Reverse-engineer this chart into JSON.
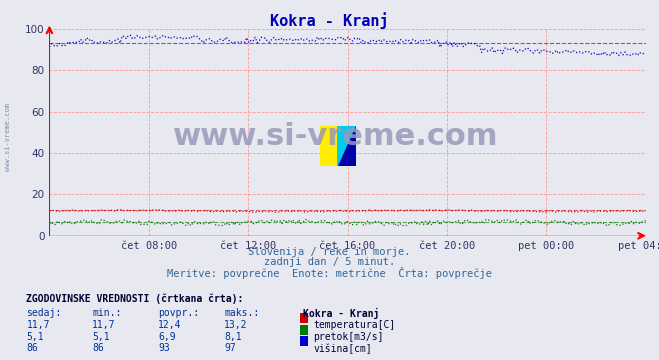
{
  "title": "Kokra - Kranj",
  "title_color": "#0000bb",
  "subtitle_lines": [
    "Slovenija / reke in morje.",
    "zadnji dan / 5 minut.",
    "Meritve: povprečne  Enote: metrične  Črta: povprečje"
  ],
  "xlabel_ticks": [
    "čet 08:00",
    "čet 12:00",
    "čet 16:00",
    "čet 20:00",
    "pet 00:00",
    "pet 04:00"
  ],
  "ylim": [
    0,
    100
  ],
  "background_color": "#e8e8f0",
  "plot_bg_color": "#e8e8f0",
  "grid_color": "#ff9999",
  "n_points": 288,
  "temp_color": "#cc0000",
  "flow_color": "#007700",
  "height_color": "#0000cc",
  "watermark_text": "www.si-vreme.com",
  "watermark_color": "#9999bb",
  "left_label": "www.si-vreme.com",
  "left_label_color": "#8888aa",
  "legend_title": "Kokra - Kranj",
  "table_header": [
    "sedaj:",
    "min.:",
    "povpr.:",
    "maks.:"
  ],
  "table_rows": [
    [
      "11,7",
      "11,7",
      "12,4",
      "13,2"
    ],
    [
      "5,1",
      "5,1",
      "6,9",
      "8,1"
    ],
    [
      "86",
      "86",
      "93",
      "97"
    ]
  ],
  "legend_labels": [
    "temperatura[C]",
    "pretok[m3/s]",
    "višina[cm]"
  ],
  "legend_colors": [
    "#cc0000",
    "#007700",
    "#0000cc"
  ],
  "logo_colors": {
    "yellow": "#ffee00",
    "cyan": "#00ccee",
    "blue": "#0000aa"
  }
}
